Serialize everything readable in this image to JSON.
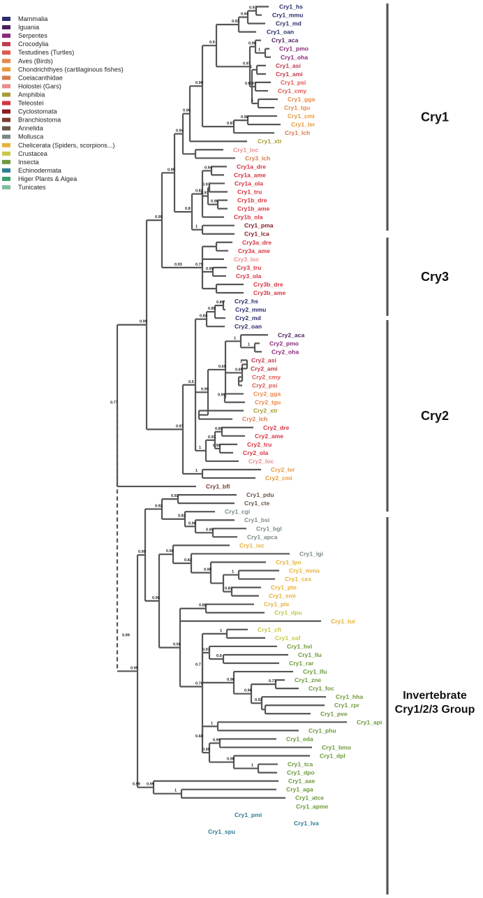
{
  "legend": [
    {
      "label": "Mammalia",
      "color": "#2b2d6b"
    },
    {
      "label": "Iguania",
      "color": "#4a1f5c"
    },
    {
      "label": "Serpentes",
      "color": "#8b2a7a"
    },
    {
      "label": "Crocodylia",
      "color": "#c23a4c"
    },
    {
      "label": "Testudines (Turtles)",
      "color": "#e0574e"
    },
    {
      "label": "Aves (Birds)",
      "color": "#e8884a"
    },
    {
      "label": "Chondrichthyes (cartilaginous fishes)",
      "color": "#e89a3c"
    },
    {
      "label": "Coelacanthidae",
      "color": "#d77b4e"
    },
    {
      "label": "Holostei (Gars)",
      "color": "#ec8c8c"
    },
    {
      "label": "Amphibia",
      "color": "#a89a3a"
    },
    {
      "label": "Teleostei",
      "color": "#d63440"
    },
    {
      "label": "Cyclostomata",
      "color": "#8a1a20"
    },
    {
      "label": "Branchiostoma",
      "color": "#7a3a2e"
    },
    {
      "label": "Annelida",
      "color": "#6b5548"
    },
    {
      "label": "Mollusca",
      "color": "#7a8a88"
    },
    {
      "label": "Chelicerata (Spiders, scorpions...)",
      "color": "#e6b23a"
    },
    {
      "label": "Crustacea",
      "color": "#c7c84a"
    },
    {
      "label": "Insecta",
      "color": "#6e9a3c"
    },
    {
      "label": "Echinodermata",
      "color": "#2e7e94"
    },
    {
      "label": "Higer Plants & Algea",
      "color": "#3aa06e"
    },
    {
      "label": "Tunicates",
      "color": "#7ec0a0"
    }
  ],
  "groups": [
    {
      "label": "Cry1"
    },
    {
      "label": "Cry3"
    },
    {
      "label": "Cry2"
    },
    {
      "label": "Invertebrate",
      "label2": "Cry1/2/3 Group"
    }
  ],
  "chart_data": {
    "type": "phylogenetic-tree",
    "leaves": [
      {
        "name": "Cry1_hs",
        "c": "#2b2d6b"
      },
      {
        "name": "Cry1_mmu",
        "c": "#2b2d6b"
      },
      {
        "name": "Cry1_md",
        "c": "#2b2d6b"
      },
      {
        "name": "Cry1_oan",
        "c": "#2b2d6b"
      },
      {
        "name": "Cry1_aca",
        "c": "#4a1f5c"
      },
      {
        "name": "Cry1_pmo",
        "c": "#8b2a7a"
      },
      {
        "name": "Cry1_oha",
        "c": "#8b2a7a"
      },
      {
        "name": "Cry1_asi",
        "c": "#c23a4c"
      },
      {
        "name": "Cry1_ami",
        "c": "#c23a4c"
      },
      {
        "name": "Cry1_psi",
        "c": "#e0574e"
      },
      {
        "name": "Cry1_cmy",
        "c": "#e0574e"
      },
      {
        "name": "Cry1_gga",
        "c": "#e8884a"
      },
      {
        "name": "Cry1_tgu",
        "c": "#e8884a"
      },
      {
        "name": "Cry1_cmi",
        "c": "#e89a3c"
      },
      {
        "name": "Cry1_ler",
        "c": "#e89a3c"
      },
      {
        "name": "Cry1_lch",
        "c": "#d77b4e"
      },
      {
        "name": "Cry1_xtr",
        "c": "#a89a3a"
      },
      {
        "name": "Cry1_loc",
        "c": "#ec8c8c"
      },
      {
        "name": "Cry3_lch",
        "c": "#d77b4e"
      },
      {
        "name": "Cry1a_dre",
        "c": "#d63440"
      },
      {
        "name": "Cry1a_ame",
        "c": "#d63440"
      },
      {
        "name": "Cry1a_ola",
        "c": "#d63440"
      },
      {
        "name": "Cry1_tru",
        "c": "#d63440"
      },
      {
        "name": "Cry1b_dre",
        "c": "#d63440"
      },
      {
        "name": "Cry1b_ame",
        "c": "#d63440"
      },
      {
        "name": "Cry1b_ola",
        "c": "#d63440"
      },
      {
        "name": "Cry1_pma",
        "c": "#8a1a20"
      },
      {
        "name": "Cry1_lca",
        "c": "#8a1a20"
      },
      {
        "name": "Cry3a_dre",
        "c": "#d63440"
      },
      {
        "name": "Cry3a_ame",
        "c": "#d63440"
      },
      {
        "name": "Cry3_loc",
        "c": "#ec8c8c"
      },
      {
        "name": "Cry3_tru",
        "c": "#d63440"
      },
      {
        "name": "Cry3_ola",
        "c": "#d63440"
      },
      {
        "name": "Cry3b_dre",
        "c": "#d63440"
      },
      {
        "name": "Cry3b_ame",
        "c": "#d63440"
      },
      {
        "name": "Cry2_hs",
        "c": "#2b2d6b"
      },
      {
        "name": "Cry2_mmu",
        "c": "#2b2d6b"
      },
      {
        "name": "Cry2_md",
        "c": "#2b2d6b"
      },
      {
        "name": "Cry2_oan",
        "c": "#2b2d6b"
      },
      {
        "name": "Cry2_aca",
        "c": "#4a1f5c"
      },
      {
        "name": "Cry2_pmo",
        "c": "#8b2a7a"
      },
      {
        "name": "Cry2_oha",
        "c": "#8b2a7a"
      },
      {
        "name": "Cry2_asi",
        "c": "#c23a4c"
      },
      {
        "name": "Cry2_ami",
        "c": "#c23a4c"
      },
      {
        "name": "Cry2_cmy",
        "c": "#e0574e"
      },
      {
        "name": "Cry2_psi",
        "c": "#e0574e"
      },
      {
        "name": "Cry2_gga",
        "c": "#e8884a"
      },
      {
        "name": "Cry2_tgu",
        "c": "#e8884a"
      },
      {
        "name": "Cry2_xtr",
        "c": "#a89a3a"
      },
      {
        "name": "Cry2_lch",
        "c": "#d77b4e"
      },
      {
        "name": "Cry2_dre",
        "c": "#d63440"
      },
      {
        "name": "Cry2_ame",
        "c": "#d63440"
      },
      {
        "name": "Cry2_tru",
        "c": "#d63440"
      },
      {
        "name": "Cry2_ola",
        "c": "#d63440"
      },
      {
        "name": "Cry2_loc",
        "c": "#ec8c8c"
      },
      {
        "name": "Cry2_ler",
        "c": "#e89a3c"
      },
      {
        "name": "Cry2_cmi",
        "c": "#e89a3c"
      },
      {
        "name": "Cry1_bfl",
        "c": "#7a3a2e"
      },
      {
        "name": "Cry1_pdu",
        "c": "#6b5548"
      },
      {
        "name": "Cry1_cte",
        "c": "#6b5548"
      },
      {
        "name": "Cry1_cgi",
        "c": "#7a8a88"
      },
      {
        "name": "Cry1_bsi",
        "c": "#7a8a88"
      },
      {
        "name": "Cry1_bgl",
        "c": "#7a8a88"
      },
      {
        "name": "Cry1_apca",
        "c": "#7a8a88"
      },
      {
        "name": "Cry1_isc",
        "c": "#e6b23a"
      },
      {
        "name": "Cry1_lgi",
        "c": "#7a8a88"
      },
      {
        "name": "Cry1_lpo",
        "c": "#e6b23a"
      },
      {
        "name": "Cry1_mma",
        "c": "#e6b23a"
      },
      {
        "name": "Cry1_cex",
        "c": "#e6b23a"
      },
      {
        "name": "Cry1_pte",
        "c": "#e6b23a"
      },
      {
        "name": "Cry1_smi",
        "c": "#e6b23a"
      },
      {
        "name": "Cry1_ple",
        "c": "#e6b23a"
      },
      {
        "name": "Cry1_dpu",
        "c": "#c7c84a"
      },
      {
        "name": "Cry1_tur",
        "c": "#e6b23a"
      },
      {
        "name": "Cry1_cfi",
        "c": "#c7c84a"
      },
      {
        "name": "Cry1_eaf",
        "c": "#c7c84a"
      },
      {
        "name": "Cry1_hvi",
        "c": "#6e9a3c"
      },
      {
        "name": "Cry1_llu",
        "c": "#6e9a3c"
      },
      {
        "name": "Cry1_rar",
        "c": "#6e9a3c"
      },
      {
        "name": "Cry1_lfu",
        "c": "#6e9a3c"
      },
      {
        "name": "Cry1_zne",
        "c": "#6e9a3c"
      },
      {
        "name": "Cry1_foc",
        "c": "#6e9a3c"
      },
      {
        "name": "Cry1_hha",
        "c": "#6e9a3c"
      },
      {
        "name": "Cry1_rpr",
        "c": "#6e9a3c"
      },
      {
        "name": "Cry1_pve",
        "c": "#6e9a3c"
      },
      {
        "name": "Cry1_api",
        "c": "#6e9a3c"
      },
      {
        "name": "Cry1_phu",
        "c": "#6e9a3c"
      },
      {
        "name": "Cry1_eda",
        "c": "#6e9a3c"
      },
      {
        "name": "Cry1_bmo",
        "c": "#6e9a3c"
      },
      {
        "name": "Cry1_dpl",
        "c": "#6e9a3c"
      },
      {
        "name": "Cry1_tca",
        "c": "#6e9a3c"
      },
      {
        "name": "Cry1_dpo",
        "c": "#6e9a3c"
      },
      {
        "name": "Cry1_aae",
        "c": "#6e9a3c"
      },
      {
        "name": "Cry1_aga",
        "c": "#6e9a3c"
      },
      {
        "name": "Cry1_atce",
        "c": "#6e9a3c"
      },
      {
        "name": "Cry1_apme",
        "c": "#6e9a3c"
      },
      {
        "name": "Cry1_pmi",
        "c": "#2e7e94"
      },
      {
        "name": "Cry1_lva",
        "c": "#2e7e94"
      },
      {
        "name": "Cry1_spu",
        "c": "#2e7e94"
      }
    ],
    "supports": [
      "0.97",
      "0.94",
      "0.93",
      "0.98",
      "0.97",
      "1",
      "0.97",
      "1",
      "0.9",
      "0.98",
      "0.87",
      "0.98",
      "0.96",
      "0.94",
      "0.97",
      "0.82",
      "0.98",
      "1",
      "0.8",
      "0.95",
      "0.75",
      "0.99",
      "0.93",
      "0.98",
      "0.89",
      "0.84",
      "0.99",
      "1",
      "0.69",
      "1",
      "0.99",
      "0.86",
      "0.5",
      "0.89",
      "0.93",
      "0.99",
      "1",
      "0.98",
      "0.97",
      "0.99",
      "0.77",
      "0.92",
      "0.92",
      "0.82",
      "0.98",
      "0.99",
      "0.96",
      "0.82",
      "0.98",
      "1",
      "0.83",
      "0.56",
      "0.88",
      "1",
      "0.76",
      "0.7",
      "0.95",
      "0.9",
      "0.91",
      "0.96",
      "0.73",
      "0.92",
      "0.92",
      "1",
      "0.68",
      "0.99",
      "0.95",
      "0.98",
      "0.75",
      "1",
      "0.99",
      "1",
      "0.95",
      "0.99"
    ]
  }
}
